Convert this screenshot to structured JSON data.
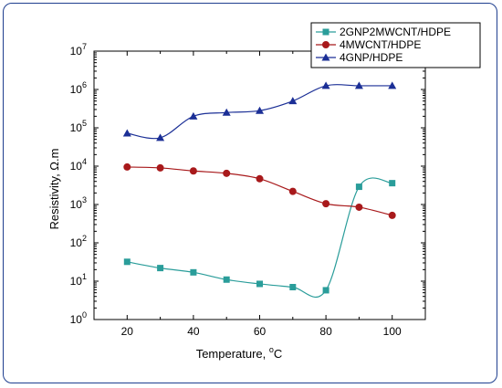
{
  "chart_data": {
    "type": "line",
    "xlabel": "Temperature, ",
    "xlabel_unit": "C",
    "xlabel_degree": "o",
    "ylabel": "Resistivity, Ω.m",
    "xlim": [
      10,
      110
    ],
    "ylim_exponent": [
      0,
      7
    ],
    "y_scale": "log",
    "x_ticks": [
      "20",
      "40",
      "60",
      "80",
      "100"
    ],
    "y_ticks": [
      {
        "base": "10",
        "exp": "0"
      },
      {
        "base": "10",
        "exp": "1"
      },
      {
        "base": "10",
        "exp": "2"
      },
      {
        "base": "10",
        "exp": "3"
      },
      {
        "base": "10",
        "exp": "4"
      },
      {
        "base": "10",
        "exp": "5"
      },
      {
        "base": "10",
        "exp": "6"
      },
      {
        "base": "10",
        "exp": "7"
      }
    ],
    "legend_position": "top-right",
    "x": [
      20,
      30,
      40,
      50,
      60,
      70,
      80,
      90,
      100
    ],
    "series": [
      {
        "name": "2GNP2MWCNT/HDPE",
        "color": "#2a9d9a",
        "marker": "square",
        "values": [
          32,
          22,
          17,
          11,
          8.5,
          7,
          5.8,
          2900,
          3600
        ]
      },
      {
        "name": "4MWCNT/HDPE",
        "color": "#a8191b",
        "marker": "circle",
        "values": [
          9500,
          9000,
          7500,
          6500,
          4700,
          2200,
          1050,
          850,
          520
        ]
      },
      {
        "name": "4GNP/HDPE",
        "color": "#1b2f96",
        "marker": "triangle",
        "values": [
          72000,
          55000,
          200000,
          250000,
          280000,
          500000,
          1250000,
          1250000,
          1250000
        ]
      }
    ]
  }
}
